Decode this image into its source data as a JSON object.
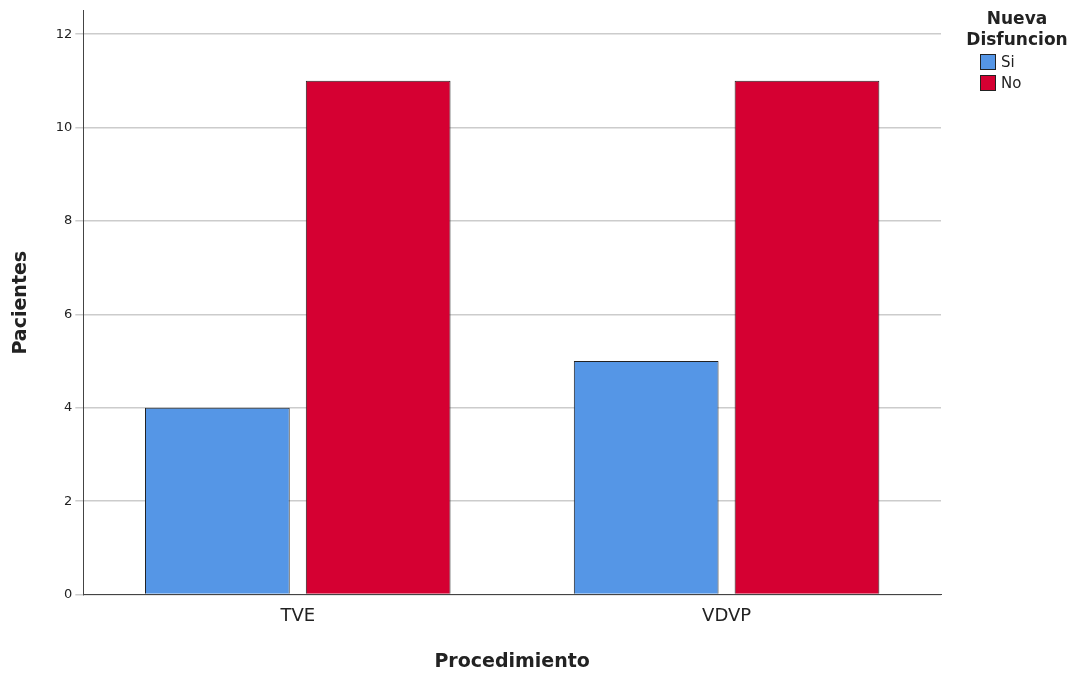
{
  "chart_data": {
    "type": "bar",
    "xlabel": "Procedimiento",
    "ylabel": "Pacientes",
    "legend_title": "Nueva Disfuncion",
    "categories": [
      "TVE",
      "VDVP"
    ],
    "series": [
      {
        "name": "Si",
        "color": "#5596e6",
        "values": [
          4,
          5
        ]
      },
      {
        "name": "No",
        "color": "#d50032",
        "values": [
          11,
          11
        ]
      }
    ],
    "ylim": [
      0,
      12.5
    ],
    "yticks": [
      0,
      2,
      4,
      6,
      8,
      10,
      12
    ],
    "grid": "y",
    "legend": "top right"
  }
}
